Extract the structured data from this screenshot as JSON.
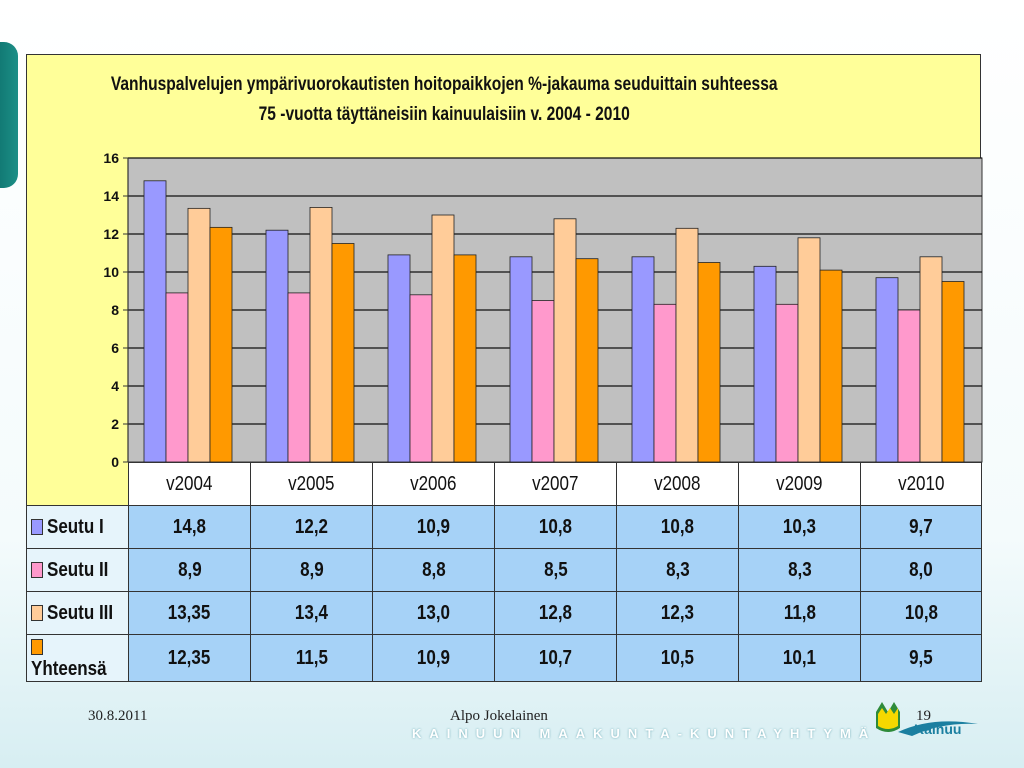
{
  "chart_data": {
    "type": "bar",
    "title": "Vanhuspalvelujen ympärivuorokautisten hoitopaikkojen %-jakauma seuduittain suhteessa",
    "subtitle": "75 -vuotta täyttäneisiin kainuulaisiin v. 2004 - 2010",
    "categories": [
      "v2004",
      "v2005",
      "v2006",
      "v2007",
      "v2008",
      "v2009",
      "v2010"
    ],
    "series": [
      {
        "name": "Seutu I",
        "color": "#9999ff",
        "values": [
          14.8,
          12.2,
          10.9,
          10.8,
          10.8,
          10.3,
          9.7
        ],
        "labels": [
          "14,8",
          "12,2",
          "10,9",
          "10,8",
          "10,8",
          "10,3",
          "9,7"
        ]
      },
      {
        "name": "Seutu II",
        "color": "#ff99cc",
        "values": [
          8.9,
          8.9,
          8.8,
          8.5,
          8.3,
          8.3,
          8.0
        ],
        "labels": [
          "8,9",
          "8,9",
          "8,8",
          "8,5",
          "8,3",
          "8,3",
          "8,0"
        ]
      },
      {
        "name": "Seutu III",
        "color": "#ffcc99",
        "values": [
          13.35,
          13.4,
          13.0,
          12.8,
          12.3,
          11.8,
          10.8
        ],
        "labels": [
          "13,35",
          "13,4",
          "13,0",
          "12,8",
          "12,3",
          "11,8",
          "10,8"
        ]
      },
      {
        "name": "Yhteensä",
        "color": "#ff9900",
        "values": [
          12.35,
          11.5,
          10.9,
          10.7,
          10.5,
          10.1,
          9.5
        ],
        "labels": [
          "12,35",
          "11,5",
          "10,9",
          "10,7",
          "10,5",
          "10,1",
          "9,5"
        ]
      }
    ],
    "yticks": [
      "0",
      "2",
      "4",
      "6",
      "8",
      "10",
      "12",
      "14",
      "16"
    ],
    "ylim": [
      0,
      16
    ],
    "grid": true,
    "legend": "data-table"
  },
  "footer": {
    "date": "30.8.2011",
    "author": "Alpo Jokelainen",
    "page": "19",
    "organization": "KAINUUN MAAKUNTA-KUNTAYHTYMÄ",
    "logo_text": "Kainuu"
  },
  "colors": {
    "frame": "#ffff99",
    "plot_bg": "#c0c0c0",
    "table_cell": "#a6d2f7"
  }
}
